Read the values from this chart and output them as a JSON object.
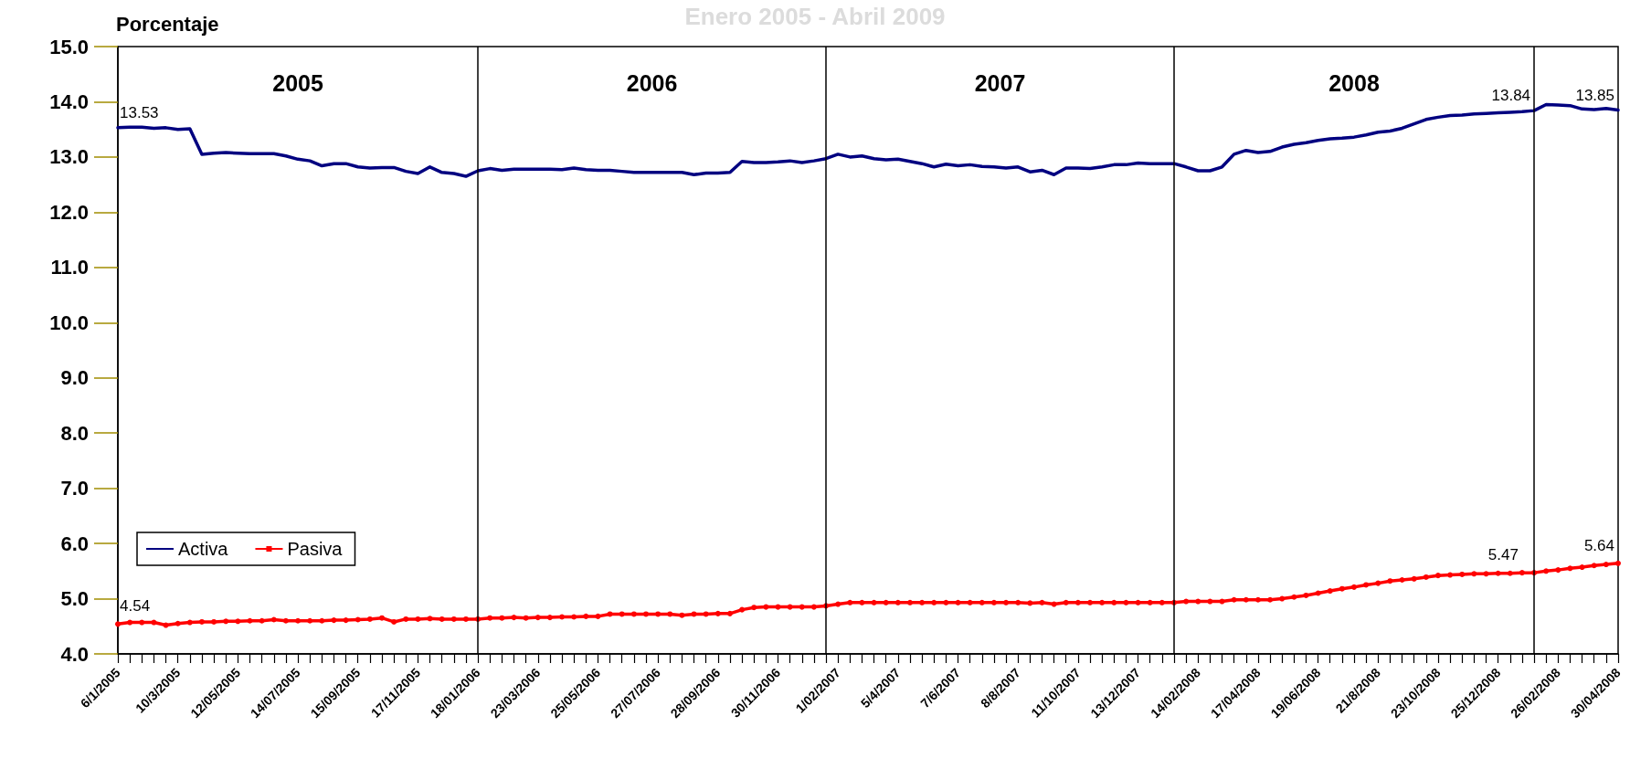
{
  "chart_data": {
    "type": "line",
    "title": "Enero 2005 - Abril 2009",
    "ylabel": "Porcentaje",
    "categories": [
      "6/1/2005",
      null,
      null,
      null,
      null,
      "10/3/2005",
      null,
      null,
      null,
      null,
      "12/05/2005",
      null,
      null,
      null,
      null,
      "14/07/2005",
      null,
      null,
      null,
      null,
      "15/09/2005",
      null,
      null,
      null,
      null,
      "17/11/2005",
      null,
      null,
      null,
      null,
      "18/01/2006",
      null,
      null,
      null,
      null,
      "23/03/2006",
      null,
      null,
      null,
      null,
      "25/05/2006",
      null,
      null,
      null,
      null,
      "27/07/2006",
      null,
      null,
      null,
      null,
      "28/09/2006",
      null,
      null,
      null,
      null,
      "30/11/2006",
      null,
      null,
      null,
      null,
      "1/02/2007",
      null,
      null,
      null,
      null,
      "5/4/2007",
      null,
      null,
      null,
      null,
      "7/6/2007",
      null,
      null,
      null,
      null,
      "8/8/2007",
      null,
      null,
      null,
      null,
      "11/10/2007",
      null,
      null,
      null,
      null,
      "13/12/2007",
      null,
      null,
      null,
      null,
      "14/02/2008",
      null,
      null,
      null,
      null,
      "17/04/2008",
      null,
      null,
      null,
      null,
      "19/06/2008",
      null,
      null,
      null,
      null,
      "21/8/2008",
      null,
      null,
      null,
      null,
      "23/10/2008",
      null,
      null,
      null,
      null,
      "25/12/2008",
      null,
      null,
      null,
      null,
      "26/02/2008",
      null,
      null,
      null,
      null,
      "30/04/2008"
    ],
    "ylim": [
      4,
      15
    ],
    "yticks": [
      {
        "value": 4,
        "label": "4.0"
      },
      {
        "value": 5,
        "label": "5.0"
      },
      {
        "value": 6,
        "label": "6.0"
      },
      {
        "value": 7,
        "label": "7.0"
      },
      {
        "value": 8,
        "label": "8.0"
      },
      {
        "value": 9,
        "label": "9.0"
      },
      {
        "value": 10,
        "label": "10.0"
      },
      {
        "value": 11,
        "label": "11.0"
      },
      {
        "value": 12,
        "label": "12.0"
      },
      {
        "value": 13,
        "label": "13.0"
      },
      {
        "value": 14,
        "label": "14.0"
      },
      {
        "value": 15,
        "label": "15.0"
      }
    ],
    "grid": false,
    "legend": "bottom left",
    "line_style": "solid",
    "series": [
      {
        "name": "Activa",
        "color": "#000080",
        "marker": "none",
        "values": [
          13.53,
          13.54,
          13.54,
          13.52,
          13.53,
          13.5,
          13.51,
          13.05,
          13.07,
          13.08,
          13.07,
          13.06,
          13.06,
          13.06,
          13.02,
          12.96,
          12.93,
          12.84,
          12.88,
          12.88,
          12.82,
          12.8,
          12.81,
          12.81,
          12.74,
          12.7,
          12.82,
          12.72,
          12.7,
          12.65,
          12.75,
          12.79,
          12.76,
          12.78,
          12.78,
          12.78,
          12.78,
          12.77,
          12.8,
          12.77,
          12.76,
          12.76,
          12.74,
          12.72,
          12.72,
          12.72,
          12.72,
          12.72,
          12.68,
          12.71,
          12.71,
          12.72,
          12.92,
          12.9,
          12.9,
          12.91,
          12.93,
          12.9,
          12.93,
          12.97,
          13.05,
          13.0,
          13.02,
          12.97,
          12.95,
          12.96,
          12.92,
          12.88,
          12.82,
          12.87,
          12.84,
          12.86,
          12.83,
          12.82,
          12.8,
          12.82,
          12.73,
          12.76,
          12.68,
          12.8,
          12.8,
          12.79,
          12.82,
          12.86,
          12.86,
          12.89,
          12.88,
          12.88,
          12.88,
          12.82,
          12.75,
          12.75,
          12.82,
          13.05,
          13.12,
          13.08,
          13.1,
          13.18,
          13.23,
          13.26,
          13.3,
          13.33,
          13.34,
          13.36,
          13.4,
          13.45,
          13.47,
          13.52,
          13.6,
          13.68,
          13.72,
          13.75,
          13.76,
          13.78,
          13.79,
          13.8,
          13.81,
          13.82,
          13.84,
          13.95,
          13.94,
          13.93,
          13.87,
          13.86,
          13.88,
          13.85
        ],
        "value_labels": [
          "13.53",
          null,
          null,
          null,
          null,
          null,
          null,
          null,
          null,
          null,
          null,
          null,
          null,
          null,
          null,
          null,
          null,
          null,
          null,
          null,
          null,
          null,
          null,
          null,
          null,
          null,
          null,
          null,
          null,
          null,
          null,
          null,
          null,
          null,
          null,
          null,
          null,
          null,
          null,
          null,
          null,
          null,
          null,
          null,
          null,
          null,
          null,
          null,
          null,
          null,
          null,
          null,
          null,
          null,
          null,
          null,
          null,
          null,
          null,
          null,
          null,
          null,
          null,
          null,
          null,
          null,
          null,
          null,
          null,
          null,
          null,
          null,
          null,
          null,
          null,
          null,
          null,
          null,
          null,
          null,
          null,
          null,
          null,
          null,
          null,
          null,
          null,
          null,
          null,
          null,
          null,
          null,
          null,
          null,
          null,
          null,
          null,
          null,
          null,
          null,
          null,
          null,
          null,
          null,
          null,
          null,
          null,
          null,
          null,
          null,
          null,
          null,
          null,
          null,
          null,
          null,
          null,
          null,
          "13.84",
          null,
          null,
          null,
          null,
          null,
          null,
          "13.85"
        ]
      },
      {
        "name": "Pasiva",
        "color": "#ff0000",
        "marker": "circle",
        "values": [
          4.54,
          4.57,
          4.57,
          4.57,
          4.52,
          4.55,
          4.57,
          4.58,
          4.58,
          4.59,
          4.59,
          4.6,
          4.6,
          4.62,
          4.6,
          4.6,
          4.6,
          4.6,
          4.61,
          4.61,
          4.62,
          4.63,
          4.65,
          4.58,
          4.63,
          4.63,
          4.64,
          4.63,
          4.63,
          4.63,
          4.63,
          4.65,
          4.65,
          4.66,
          4.65,
          4.66,
          4.66,
          4.67,
          4.67,
          4.68,
          4.68,
          4.72,
          4.72,
          4.72,
          4.72,
          4.72,
          4.72,
          4.7,
          4.72,
          4.72,
          4.73,
          4.73,
          4.8,
          4.84,
          4.85,
          4.85,
          4.85,
          4.85,
          4.85,
          4.87,
          4.9,
          4.93,
          4.93,
          4.93,
          4.93,
          4.93,
          4.93,
          4.93,
          4.93,
          4.93,
          4.93,
          4.93,
          4.93,
          4.93,
          4.93,
          4.93,
          4.92,
          4.93,
          4.9,
          4.93,
          4.93,
          4.93,
          4.93,
          4.93,
          4.93,
          4.93,
          4.93,
          4.93,
          4.93,
          4.95,
          4.95,
          4.95,
          4.95,
          4.98,
          4.98,
          4.98,
          4.98,
          5.0,
          5.03,
          5.06,
          5.1,
          5.14,
          5.18,
          5.21,
          5.25,
          5.28,
          5.32,
          5.34,
          5.36,
          5.39,
          5.42,
          5.43,
          5.44,
          5.45,
          5.45,
          5.46,
          5.46,
          5.47,
          5.47,
          5.5,
          5.52,
          5.55,
          5.57,
          5.6,
          5.62,
          5.64
        ],
        "value_labels": [
          "4.54",
          null,
          null,
          null,
          null,
          null,
          null,
          null,
          null,
          null,
          null,
          null,
          null,
          null,
          null,
          null,
          null,
          null,
          null,
          null,
          null,
          null,
          null,
          null,
          null,
          null,
          null,
          null,
          null,
          null,
          null,
          null,
          null,
          null,
          null,
          null,
          null,
          null,
          null,
          null,
          null,
          null,
          null,
          null,
          null,
          null,
          null,
          null,
          null,
          null,
          null,
          null,
          null,
          null,
          null,
          null,
          null,
          null,
          null,
          null,
          null,
          null,
          null,
          null,
          null,
          null,
          null,
          null,
          null,
          null,
          null,
          null,
          null,
          null,
          null,
          null,
          null,
          null,
          null,
          null,
          null,
          null,
          null,
          null,
          null,
          null,
          null,
          null,
          null,
          null,
          null,
          null,
          null,
          null,
          null,
          null,
          null,
          null,
          null,
          null,
          null,
          null,
          null,
          null,
          null,
          null,
          null,
          null,
          null,
          null,
          null,
          null,
          null,
          null,
          null,
          null,
          null,
          "5.47",
          null,
          null,
          null,
          null,
          null,
          null,
          null,
          "5.64"
        ]
      }
    ],
    "annotations": [
      "2005",
      "2006",
      "2007",
      "2008"
    ]
  }
}
